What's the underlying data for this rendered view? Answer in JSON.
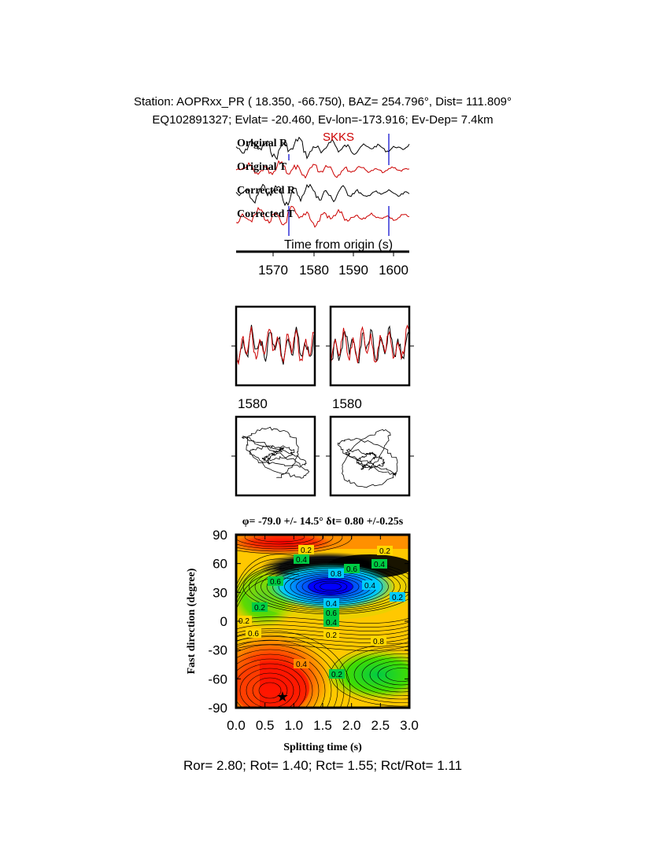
{
  "header": {
    "line1": "Station: AOPRxx_PR (  18.350,   -66.750), BAZ=  254.796°, Dist=  111.809°",
    "line2": "EQ102891327; Evlat= -20.460, Ev-lon=-173.916; Ev-Dep=  7.4km"
  },
  "traces_panel": {
    "phase_label": "SKKS",
    "trace_labels": [
      "Original R",
      "Original T",
      "Corrected R",
      "Corrected T"
    ],
    "xlabel": "Time from origin (s)",
    "xticks": [
      "1570",
      "1580",
      "1590",
      "1600"
    ],
    "colors": {
      "radial": "#000000",
      "transverse": "#cc0000",
      "marker": "#0000cc"
    }
  },
  "waveform_panels": {
    "tick_label_left": "1580",
    "tick_label_right": "1580"
  },
  "grid_search": {
    "title": "φ= -79.0 +/- 14.5° δt= 0.80 +/-0.25s",
    "xlabel": "Splitting time (s)",
    "ylabel": "Fast direction (degree)",
    "xticks": [
      "0.0",
      "0.5",
      "1.0",
      "1.5",
      "2.0",
      "2.5",
      "3.0"
    ],
    "yticks": [
      "90",
      "60",
      "30",
      "0",
      "-30",
      "-60",
      "-90"
    ],
    "contour_labels": [
      "0.2",
      "0.4",
      "0.6",
      "0.8",
      "0.6",
      "0.4",
      "0.2",
      "0.2",
      "0.4",
      "0.6",
      "0.4",
      "0.2",
      "0.8",
      "0.6",
      "0.4",
      "0.2",
      "0.2",
      "0.2",
      "0.4"
    ]
  },
  "chart_data": {
    "type": "heatmap",
    "title": "φ= -79.0 +/- 14.5° δt= 0.80 +/-0.25s",
    "xlabel": "Splitting time (s)",
    "ylabel": "Fast direction (degree)",
    "xlim": [
      0,
      3
    ],
    "ylim": [
      -90,
      90
    ],
    "best_fit": {
      "splitting_time_s": 0.8,
      "fast_direction_deg": -79.0
    },
    "minimum_region": {
      "splitting_time_s": 1.6,
      "fast_direction_deg": 33
    },
    "contour_levels": [
      0.2,
      0.4,
      0.6,
      0.8
    ],
    "colormap": [
      "#ff0000",
      "#ff8c00",
      "#ffd700",
      "#00cc00",
      "#00ccff",
      "#0000ff",
      "#000000"
    ]
  },
  "footer": {
    "text": "Ror= 2.80; Rot= 1.40; Rct= 1.55; Rct/Rot= 1.11"
  }
}
